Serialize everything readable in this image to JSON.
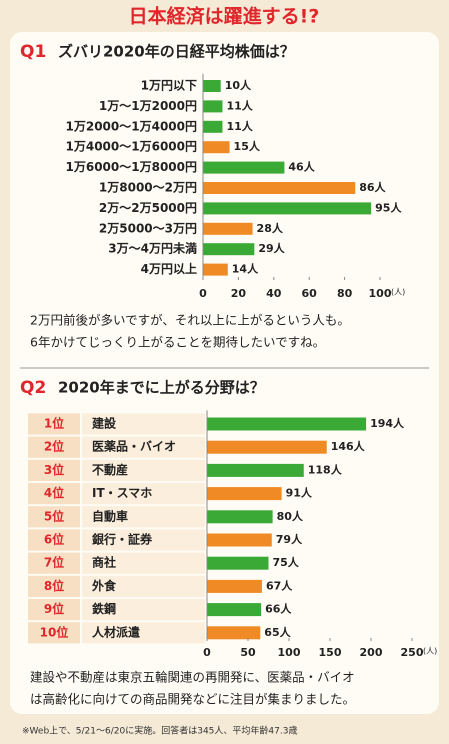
{
  "title": "日本経済は躍進する!?",
  "chart_data": [
    {
      "type": "hbar",
      "label": "Q1",
      "title": "ズバリ2020年の日経平均株価は？",
      "categories": [
        "1万円以下",
        "1万～1万2000円",
        "1万2000～1万4000円",
        "1万4000～1万6000円",
        "1万6000～1万8000円",
        "1万8000～2万円",
        "2万～2万5000円",
        "2万5000～3万円",
        "3万～4万円未満",
        "4万円以上"
      ],
      "values": [
        10,
        11,
        11,
        15,
        46,
        86,
        95,
        28,
        29,
        14
      ],
      "value_labels": [
        "10人",
        "11人",
        "11人",
        "15人",
        "46人",
        "86人",
        "95人",
        "28人",
        "29人",
        "14人"
      ],
      "colors": [
        "#3aa935",
        "#3aa935",
        "#3aa935",
        "#f08a24",
        "#3aa935",
        "#f08a24",
        "#3aa935",
        "#f08a24",
        "#3aa935",
        "#f08a24"
      ],
      "xlim": [
        0,
        100
      ],
      "xticks": [
        0,
        20,
        40,
        60,
        80,
        100
      ],
      "x_unit": "(人)",
      "comment": [
        "2万円前後が多いですが、それ以上に上がるという人も。",
        "6年かけてじっくり上がることを期待したいですね。"
      ]
    },
    {
      "type": "hbar",
      "label": "Q2",
      "title": "2020年までに上がる分野は？",
      "ranks": [
        "1位",
        "2位",
        "3位",
        "4位",
        "5位",
        "6位",
        "7位",
        "8位",
        "9位",
        "10位"
      ],
      "categories": [
        "建設",
        "医薬品・バイオ",
        "不動産",
        "IT・スマホ",
        "自動車",
        "銀行・証券",
        "商社",
        "外食",
        "鉄鋼",
        "人材派遣"
      ],
      "values": [
        194,
        146,
        118,
        91,
        80,
        79,
        75,
        67,
        66,
        65
      ],
      "value_labels": [
        "194人",
        "146人",
        "118人",
        "91人",
        "80人",
        "79人",
        "75人",
        "67人",
        "66人",
        "65人"
      ],
      "colors": [
        "#3aa935",
        "#f08a24",
        "#3aa935",
        "#f08a24",
        "#3aa935",
        "#f08a24",
        "#3aa935",
        "#f08a24",
        "#3aa935",
        "#f08a24"
      ],
      "xlim": [
        0,
        250
      ],
      "xticks": [
        0,
        50,
        100,
        150,
        200,
        250
      ],
      "x_unit": "(人)",
      "comment": [
        "建設や不動産は東京五輪関連の再開発に、医薬品・バイオ",
        "は高齢化に向けての商品開発などに注目が集まりました。"
      ]
    }
  ],
  "footnote": "※Web上で、5/21～6/20に実施。回答者は345人、平均年齢47.3歳"
}
